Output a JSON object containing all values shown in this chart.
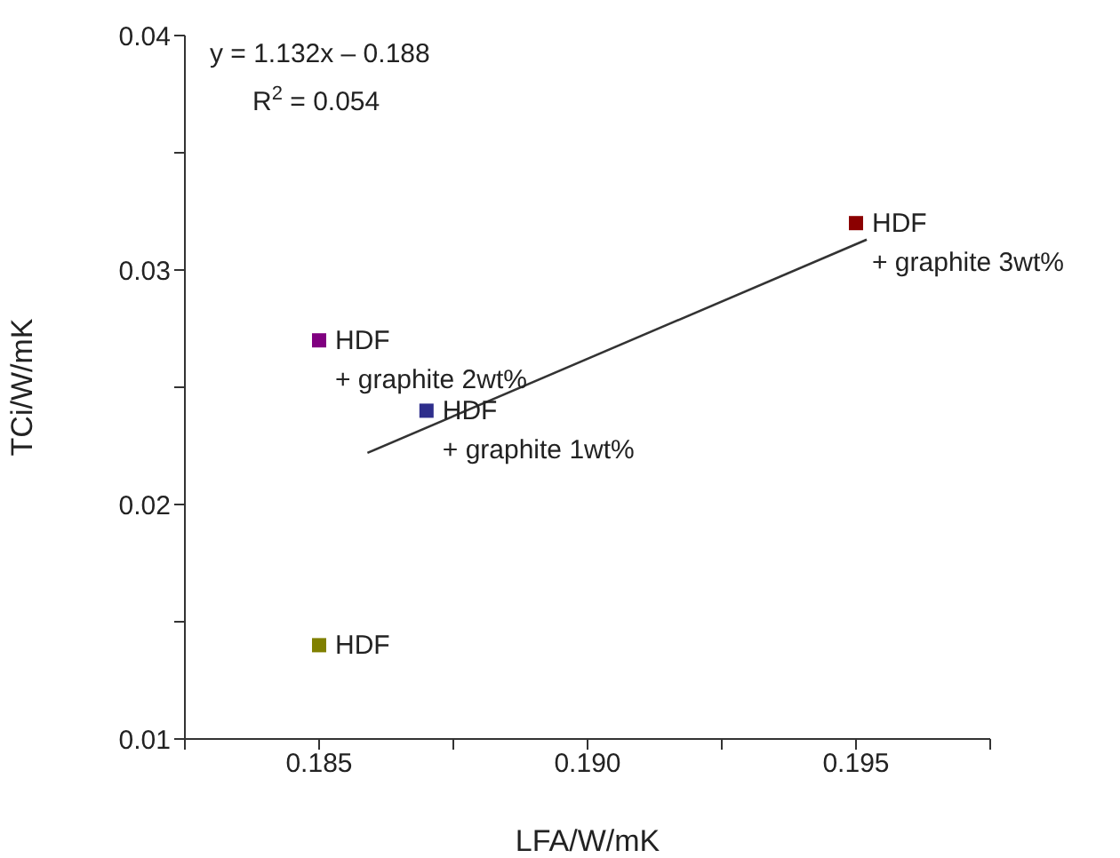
{
  "chart_data": {
    "type": "scatter",
    "xlabel": "LFA/W/mK",
    "ylabel": "TCi/W/mK",
    "xlim": [
      0.1825,
      0.1975
    ],
    "xticks": [
      {
        "value": 0.1825,
        "label": null
      },
      0.185,
      {
        "value": 0.1875,
        "label": null
      },
      {
        "value": 0.19,
        "label": "0.190"
      },
      {
        "value": 0.1925,
        "label": null
      },
      0.195,
      {
        "value": 0.1975,
        "label": null
      }
    ],
    "ylim": [
      0.01,
      0.04
    ],
    "yticks": [
      0.01,
      {
        "value": 0.015,
        "label": null
      },
      0.02,
      {
        "value": 0.025,
        "label": null
      },
      0.03,
      {
        "value": 0.035,
        "label": null
      },
      0.04
    ],
    "marker": "square",
    "grid": false,
    "legend": false,
    "annotations": [
      "y = 1.132x – 0.188",
      "R$^{2}$ = 0.054"
    ],
    "series": [
      {
        "name": "HDF",
        "color": "#808000",
        "x": [
          0.185
        ],
        "values": [
          0.014
        ]
      },
      {
        "name": "HDF\n+ graphite 2wt%",
        "color": "#800080",
        "x": [
          0.185
        ],
        "values": [
          0.027
        ]
      },
      {
        "name": "HDF\n+ graphite 1wt%",
        "color": "#2e2e8c",
        "x": [
          0.187
        ],
        "values": [
          0.024
        ]
      },
      {
        "name": "HDF\n+ graphite 3wt%",
        "color": "#8b0000",
        "x": [
          0.195
        ],
        "values": [
          0.032
        ]
      },
      {
        "type": "line",
        "color": "#333333",
        "x": [
          0.1859,
          0.1952
        ],
        "values": [
          0.0222,
          0.0313
        ],
        "marker": "none",
        "line_style": "solid"
      }
    ]
  }
}
